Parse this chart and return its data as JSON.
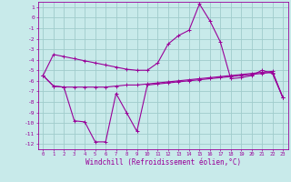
{
  "x": [
    0,
    1,
    2,
    3,
    4,
    5,
    6,
    7,
    8,
    9,
    10,
    11,
    12,
    13,
    14,
    15,
    16,
    17,
    18,
    19,
    20,
    21,
    22,
    23
  ],
  "line1": [
    -5.5,
    -3.5,
    -3.7,
    -3.9,
    -4.1,
    -4.3,
    -4.5,
    -4.7,
    -4.9,
    -5.0,
    -5.0,
    -4.3,
    -2.5,
    -1.7,
    -1.2,
    1.3,
    -0.3,
    -2.3,
    -5.8,
    -5.7,
    -5.5,
    -5.0,
    -5.3,
    -7.6
  ],
  "line2": [
    -5.5,
    -6.5,
    -6.6,
    -6.6,
    -6.6,
    -6.6,
    -6.6,
    -6.5,
    -6.4,
    -6.4,
    -6.3,
    -6.2,
    -6.1,
    -6.0,
    -5.9,
    -5.8,
    -5.7,
    -5.6,
    -5.5,
    -5.4,
    -5.3,
    -5.2,
    -5.1,
    -7.6
  ],
  "line3": [
    -5.5,
    -6.5,
    -6.6,
    -9.8,
    -9.9,
    -11.8,
    -11.8,
    -7.2,
    -9.0,
    -10.8,
    -6.4,
    -6.3,
    -6.2,
    -6.1,
    -6.0,
    -5.9,
    -5.8,
    -5.7,
    -5.6,
    -5.5,
    -5.4,
    -5.3,
    -5.2,
    -7.6
  ],
  "color": "#990099",
  "bg_color": "#c8eaea",
  "grid_color": "#a0cccc",
  "xlabel": "Windchill (Refroidissement éolien,°C)",
  "ylim": [
    -12.5,
    1.5
  ],
  "xlim": [
    -0.5,
    23.5
  ],
  "yticks": [
    1,
    0,
    -1,
    -2,
    -3,
    -4,
    -5,
    -6,
    -7,
    -8,
    -9,
    -10,
    -11,
    -12
  ],
  "xticks": [
    0,
    1,
    2,
    3,
    4,
    5,
    6,
    7,
    8,
    9,
    10,
    11,
    12,
    13,
    14,
    15,
    16,
    17,
    18,
    19,
    20,
    21,
    22,
    23
  ]
}
